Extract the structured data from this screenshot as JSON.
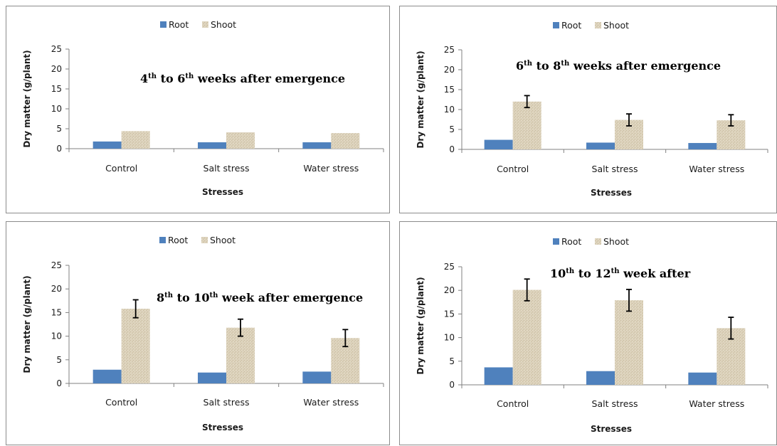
{
  "colors": {
    "root": "#4f81bd",
    "shoot": "#ddd3bd",
    "shoot_texture": "#c8bb9f",
    "axis": "#808080",
    "error_bar": "#000000"
  },
  "chart_data": [
    {
      "type": "bar",
      "annotation": [
        {
          "t": "4"
        },
        {
          "t": "th",
          "sup": true
        },
        {
          "t": " to "
        },
        {
          "t": "6"
        },
        {
          "t": "th",
          "sup": true
        },
        {
          "t": " weeks after emergence"
        }
      ],
      "categories": [
        "Control",
        "Salt stress",
        "Water stress"
      ],
      "series": [
        {
          "name": "Root",
          "values": [
            1.8,
            1.6,
            1.6
          ]
        },
        {
          "name": "Shoot",
          "values": [
            4.4,
            4.1,
            3.9
          ]
        }
      ],
      "error_bars": null,
      "xlabel": "Stresses",
      "ylabel": "Dry matter (g/plant)",
      "ylim": [
        0,
        25
      ],
      "yticks": [
        0,
        5,
        10,
        15,
        20,
        25
      ],
      "grid": false,
      "legend": "top-center"
    },
    {
      "type": "bar",
      "annotation": [
        {
          "t": "6"
        },
        {
          "t": "th",
          "sup": true
        },
        {
          "t": " to "
        },
        {
          "t": "8"
        },
        {
          "t": "th",
          "sup": true
        },
        {
          "t": " weeks after emergence"
        }
      ],
      "categories": [
        "Control",
        "Salt stress",
        "Water stress"
      ],
      "series": [
        {
          "name": "Root",
          "values": [
            2.4,
            1.7,
            1.6
          ]
        },
        {
          "name": "Shoot",
          "values": [
            12.0,
            7.4,
            7.3
          ]
        }
      ],
      "error_bars": {
        "series": "Shoot",
        "values": [
          1.5,
          1.5,
          1.4
        ]
      },
      "xlabel": "Stresses",
      "ylabel": "Dry matter (g/plant)",
      "ylim": [
        0,
        25
      ],
      "yticks": [
        0,
        5,
        10,
        15,
        20,
        25
      ],
      "grid": false,
      "legend": "top-center"
    },
    {
      "type": "bar",
      "annotation": [
        {
          "t": "8"
        },
        {
          "t": "th",
          "sup": true
        },
        {
          "t": " to "
        },
        {
          "t": "10"
        },
        {
          "t": "th",
          "sup": true
        },
        {
          "t": " week after emergence"
        }
      ],
      "categories": [
        "Control",
        "Salt stress",
        "Water stress"
      ],
      "series": [
        {
          "name": "Root",
          "values": [
            2.9,
            2.3,
            2.5
          ]
        },
        {
          "name": "Shoot",
          "values": [
            15.8,
            11.8,
            9.6
          ]
        }
      ],
      "error_bars": {
        "series": "Shoot",
        "values": [
          1.9,
          1.8,
          1.8
        ]
      },
      "xlabel": "Stresses",
      "ylabel": "Dry matter (g/plant)",
      "ylim": [
        0,
        25
      ],
      "yticks": [
        0,
        5,
        10,
        15,
        20,
        25
      ],
      "grid": false,
      "legend": "top-center"
    },
    {
      "type": "bar",
      "annotation": [
        {
          "t": "10"
        },
        {
          "t": "th",
          "sup": true
        },
        {
          "t": " to "
        },
        {
          "t": "12"
        },
        {
          "t": "th",
          "sup": true
        },
        {
          "t": " week after"
        }
      ],
      "categories": [
        "Control",
        "Salt stress",
        "Water stress"
      ],
      "series": [
        {
          "name": "Root",
          "values": [
            3.7,
            2.9,
            2.6
          ]
        },
        {
          "name": "Shoot",
          "values": [
            20.1,
            17.9,
            12.0
          ]
        }
      ],
      "error_bars": {
        "series": "Shoot",
        "values": [
          2.3,
          2.3,
          2.3
        ]
      },
      "xlabel": "Stresses",
      "ylabel": "Dry matter (g/plant)",
      "ylim": [
        0,
        25
      ],
      "yticks": [
        0,
        5,
        10,
        15,
        20,
        25
      ],
      "grid": false,
      "legend": "top-center"
    }
  ]
}
